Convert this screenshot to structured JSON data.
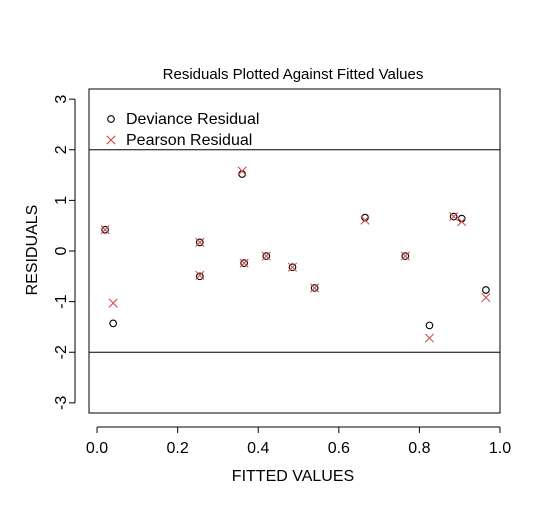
{
  "chart_data": {
    "type": "scatter",
    "title": "Residuals Plotted Against Fitted Values",
    "xlabel": "FITTED VALUES",
    "ylabel": "RESIDUALS",
    "xlim": [
      -0.02,
      1.0
    ],
    "ylim": [
      -3.2,
      3.2
    ],
    "x_ticks": [
      0.0,
      0.2,
      0.4,
      0.6,
      0.8,
      1.0
    ],
    "x_tick_labels": [
      "0.0",
      "0.2",
      "0.4",
      "0.6",
      "0.8",
      "1.0"
    ],
    "y_ticks": [
      -3,
      -2,
      -1,
      0,
      1,
      2,
      3
    ],
    "y_tick_labels": [
      "-3",
      "-2",
      "-1",
      "0",
      "1",
      "2",
      "3"
    ],
    "reference_lines": [
      2,
      -2
    ],
    "legend_position": "top-left",
    "series": [
      {
        "name": "Deviance Residual",
        "marker": "circle",
        "color": "#000000",
        "x": [
          0.02,
          0.04,
          0.255,
          0.255,
          0.36,
          0.365,
          0.42,
          0.485,
          0.54,
          0.665,
          0.765,
          0.825,
          0.885,
          0.905,
          0.965
        ],
        "y": [
          0.42,
          -1.43,
          0.17,
          -0.5,
          1.52,
          -0.24,
          -0.1,
          -0.32,
          -0.73,
          0.66,
          -0.1,
          -1.47,
          0.68,
          0.64,
          -0.77
        ]
      },
      {
        "name": "Pearson Residual",
        "marker": "x",
        "color": "#d05050",
        "x": [
          0.02,
          0.04,
          0.255,
          0.255,
          0.36,
          0.365,
          0.42,
          0.485,
          0.54,
          0.665,
          0.765,
          0.825,
          0.885,
          0.905,
          0.965
        ],
        "y": [
          0.42,
          -1.03,
          0.17,
          -0.48,
          1.58,
          -0.24,
          -0.1,
          -0.32,
          -0.73,
          0.61,
          -0.1,
          -1.72,
          0.68,
          0.58,
          -0.92
        ]
      }
    ]
  }
}
